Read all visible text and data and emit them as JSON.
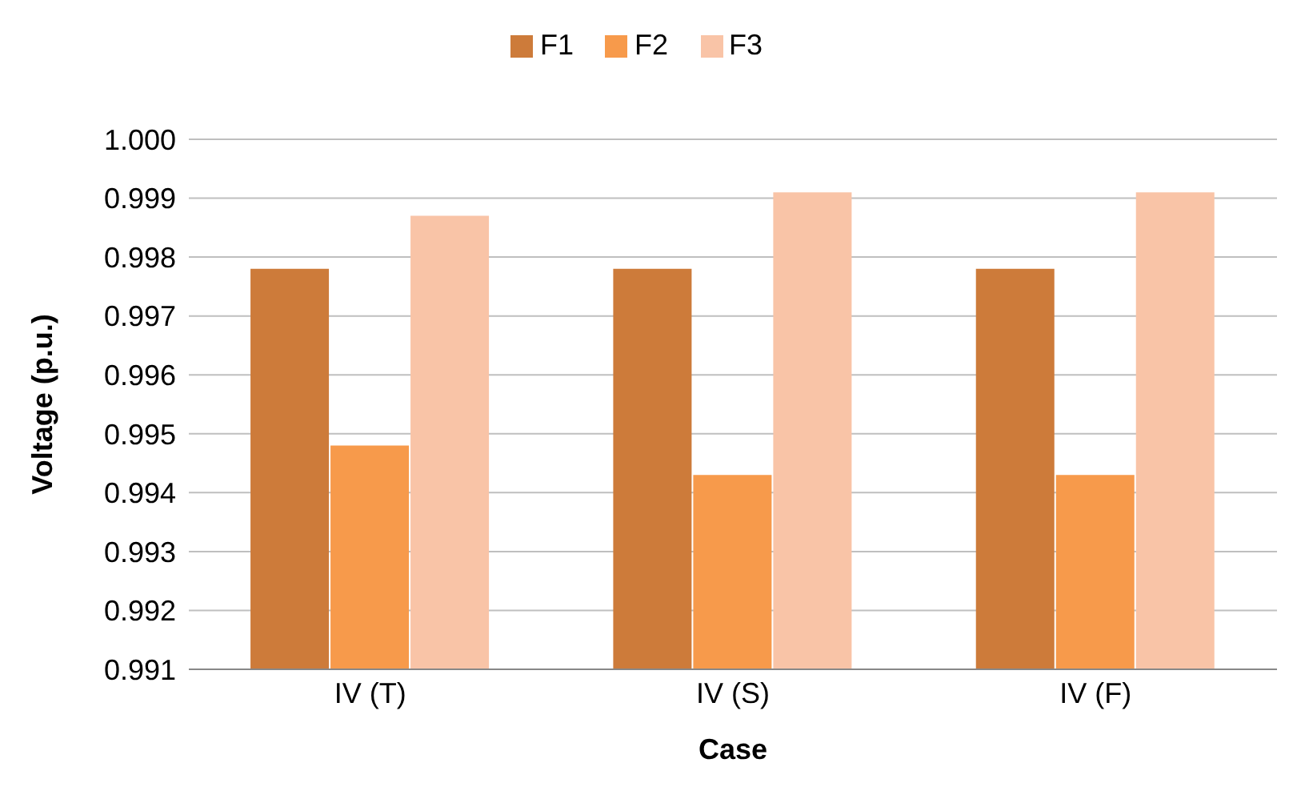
{
  "chart_data": {
    "type": "bar",
    "xlabel": "Case",
    "ylabel": "Voltage (p.u.)",
    "categories": [
      "IV (T)",
      "IV (S)",
      "IV (F)"
    ],
    "series": [
      {
        "name": "F1",
        "color": "#cd7b3a",
        "values": [
          0.9978,
          0.9978,
          0.9978
        ]
      },
      {
        "name": "F2",
        "color": "#f79a4b",
        "values": [
          0.9948,
          0.9943,
          0.9943
        ]
      },
      {
        "name": "F3",
        "color": "#f9c4a7",
        "values": [
          0.9987,
          0.9991,
          0.9991
        ]
      }
    ],
    "ylim": [
      0.991,
      1.0
    ],
    "yticks": [
      0.991,
      0.992,
      0.993,
      0.994,
      0.995,
      0.996,
      0.997,
      0.998,
      0.999,
      {
        "value": 1.0,
        "label": "1.000"
      }
    ],
    "grid": "y",
    "legend": "top"
  }
}
